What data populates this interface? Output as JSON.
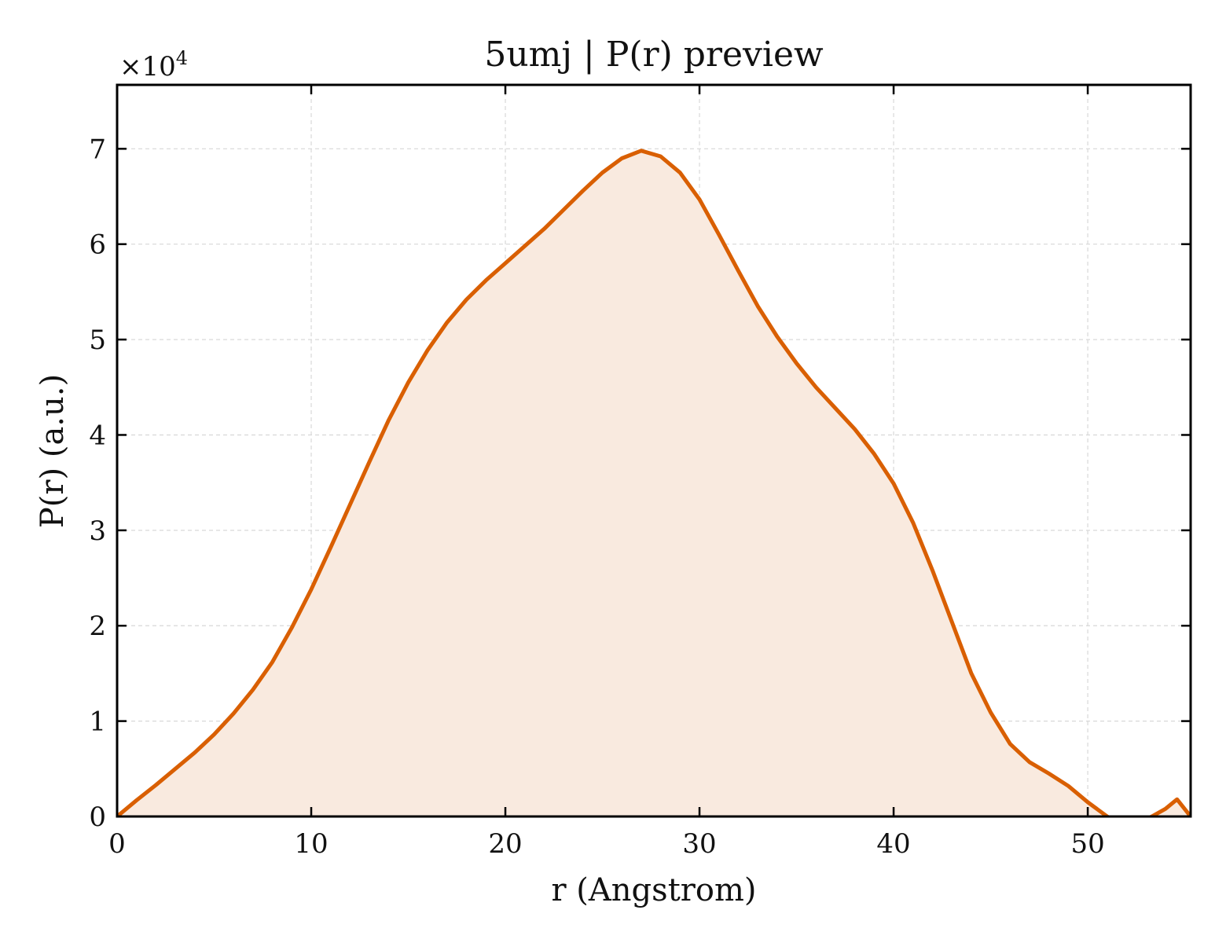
{
  "chart_data": {
    "type": "area",
    "title": "5umj | P(r) preview",
    "xlabel": "r (Angstrom)",
    "ylabel": "P(r) (a.u.)",
    "y_offset_label": {
      "base": "×10",
      "exp": "4"
    },
    "xlim": [
      0,
      55.3
    ],
    "ylim": [
      0,
      76700
    ],
    "x_ticks": [
      0,
      10,
      20,
      30,
      40,
      50
    ],
    "y_ticks": [
      0,
      10000,
      20000,
      30000,
      40000,
      50000,
      60000,
      70000
    ],
    "y_tick_labels": [
      "0",
      "1",
      "2",
      "3",
      "4",
      "5",
      "6",
      "7"
    ],
    "grid": true,
    "legend": "none",
    "colors": {
      "line": "#d95f02",
      "fill": "#f9eadf",
      "grid": "#d8d8d8",
      "frame": "#000000"
    },
    "series": [
      {
        "x": [
          0,
          1,
          2,
          3,
          4,
          5,
          6,
          7,
          8,
          9,
          10,
          11,
          12,
          13,
          14,
          15,
          16,
          17,
          18,
          19,
          20,
          21,
          22,
          23,
          24,
          25,
          26,
          27,
          28,
          29,
          30,
          31,
          32,
          33,
          34,
          35,
          36,
          37,
          38,
          39,
          40,
          41,
          42,
          43,
          44,
          45,
          46,
          47,
          48,
          49,
          50,
          51,
          52,
          53,
          53.3,
          54,
          54.6,
          55.3
        ],
        "y": [
          0,
          1700,
          3300,
          5000,
          6700,
          8600,
          10800,
          13300,
          16200,
          19800,
          23800,
          28200,
          32700,
          37200,
          41600,
          45500,
          48900,
          51800,
          54200,
          56200,
          58000,
          59800,
          61600,
          63600,
          65600,
          67500,
          69000,
          69800,
          69200,
          67500,
          64700,
          61000,
          57200,
          53500,
          50300,
          47500,
          45000,
          42800,
          40600,
          38000,
          34900,
          30800,
          25800,
          20400,
          15000,
          10900,
          7600,
          5700,
          4500,
          3200,
          1500,
          0,
          -1200,
          -300,
          0,
          800,
          1800,
          0
        ]
      }
    ]
  }
}
